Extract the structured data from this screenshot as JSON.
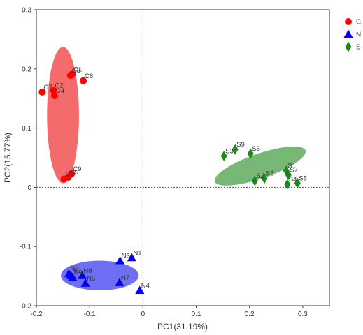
{
  "chart_data": {
    "type": "scatter",
    "xlabel": "PC1(31.19%)",
    "ylabel": "PC2(15.77%)",
    "xlim": [
      -0.2,
      0.35
    ],
    "ylim": [
      -0.2,
      0.3
    ],
    "xticks": [
      -0.2,
      -0.1,
      0,
      0.1,
      0.2,
      0.3
    ],
    "yticks": [
      -0.2,
      -0.1,
      0,
      0.1,
      0.2,
      0.3
    ],
    "xtick_labels": [
      "-0.2",
      "-0.1",
      "0",
      "0.1",
      "0.2",
      "0.3"
    ],
    "ytick_labels": [
      "-0.2",
      "-0.1",
      "0",
      "0.1",
      "0.2",
      "0.3"
    ],
    "reference_lines": {
      "x": 0,
      "y": 0,
      "style": "dotted"
    },
    "legend_position": "top-right",
    "series": [
      {
        "name": "C",
        "marker": "circle",
        "color": "#ff0000",
        "ellipse_color": "#f46b6b",
        "ellipse": {
          "cx": -0.15,
          "cy": 0.122,
          "rx": 0.03,
          "ry": 0.115,
          "angle": 0
        },
        "points": [
          {
            "label": "C1",
            "x": -0.133,
            "y": 0.191
          },
          {
            "label": "C3",
            "x": -0.136,
            "y": 0.189
          },
          {
            "label": "C8",
            "x": -0.112,
            "y": 0.18
          },
          {
            "label": "C7",
            "x": -0.189,
            "y": 0.161
          },
          {
            "label": "C2",
            "x": -0.168,
            "y": 0.164
          },
          {
            "label": "C4",
            "x": -0.166,
            "y": 0.155
          },
          {
            "label": "C6",
            "x": -0.148,
            "y": 0.014
          },
          {
            "label": "C5",
            "x": -0.14,
            "y": 0.017
          },
          {
            "label": "C9",
            "x": -0.134,
            "y": 0.023
          }
        ]
      },
      {
        "name": "N",
        "marker": "triangle",
        "color": "#0000ee",
        "ellipse_color": "#6f6ff5",
        "ellipse": {
          "cx": -0.081,
          "cy": -0.149,
          "rx": 0.073,
          "ry": 0.025,
          "angle": 0
        },
        "points": [
          {
            "label": "N1",
            "x": -0.021,
            "y": -0.119
          },
          {
            "label": "N3",
            "x": -0.043,
            "y": -0.124
          },
          {
            "label": "N6",
            "x": -0.139,
            "y": -0.146
          },
          {
            "label": "N2",
            "x": -0.135,
            "y": -0.149
          },
          {
            "label": "N9",
            "x": -0.132,
            "y": -0.152
          },
          {
            "label": "N8",
            "x": -0.114,
            "y": -0.149
          },
          {
            "label": "N5",
            "x": -0.108,
            "y": -0.162
          },
          {
            "label": "N7",
            "x": -0.044,
            "y": -0.161
          },
          {
            "label": "N4",
            "x": -0.006,
            "y": -0.174
          }
        ]
      },
      {
        "name": "S",
        "marker": "diamond",
        "color": "#1a8a1a",
        "ellipse_color": "#77b877",
        "ellipse": {
          "cx": 0.22,
          "cy": 0.036,
          "rx": 0.09,
          "ry": 0.021,
          "angle": 19
        },
        "points": [
          {
            "label": "S9",
            "x": 0.173,
            "y": 0.064
          },
          {
            "label": "S6",
            "x": 0.202,
            "y": 0.057
          },
          {
            "label": "S3",
            "x": 0.152,
            "y": 0.053
          },
          {
            "label": "S1",
            "x": 0.269,
            "y": 0.028
          },
          {
            "label": "S7",
            "x": 0.273,
            "y": 0.021
          },
          {
            "label": "S8",
            "x": 0.228,
            "y": 0.015
          },
          {
            "label": "S2",
            "x": 0.21,
            "y": 0.011
          },
          {
            "label": "S4",
            "x": 0.271,
            "y": 0.005
          },
          {
            "label": "S5",
            "x": 0.29,
            "y": 0.007
          }
        ]
      }
    ]
  }
}
